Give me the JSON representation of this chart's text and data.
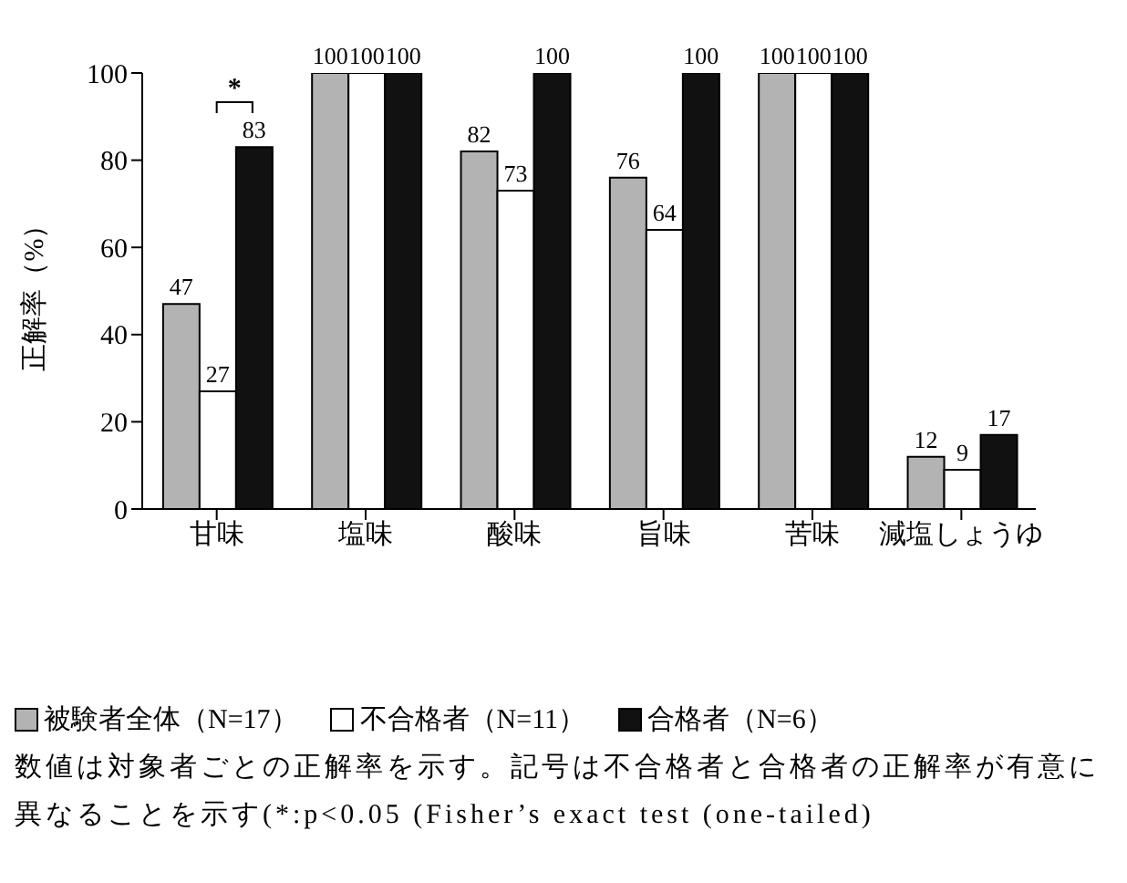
{
  "chart_data": {
    "type": "bar",
    "categories": [
      "甘味",
      "塩味",
      "酸味",
      "旨味",
      "苦味",
      "減塩しょうゆ"
    ],
    "ylabel": "正解率（%）",
    "series": [
      {
        "name": "被験者全体（N=17）",
        "color": "#b3b3b3",
        "values": [
          47,
          100,
          82,
          76,
          100,
          12
        ]
      },
      {
        "name": "不合格者（N=11）",
        "color": "#ffffff",
        "values": [
          27,
          100,
          73,
          64,
          100,
          9
        ]
      },
      {
        "name": "合格者（N=6）",
        "color": "#111111",
        "values": [
          83,
          100,
          100,
          100,
          100,
          17
        ]
      }
    ],
    "ylim": [
      0,
      100
    ],
    "yticks": [
      0,
      20,
      40,
      60,
      80,
      100
    ],
    "data_labels": true,
    "grid": false,
    "legend": "bottom left",
    "annotations": [
      "*",
      "数値は対象者ごとの正解率を示す。記号は不合格者と合格者の正解率が有意に異なることを示す(*:p<0.05 (Fisher’s exact test (one-tailed)"
    ]
  }
}
